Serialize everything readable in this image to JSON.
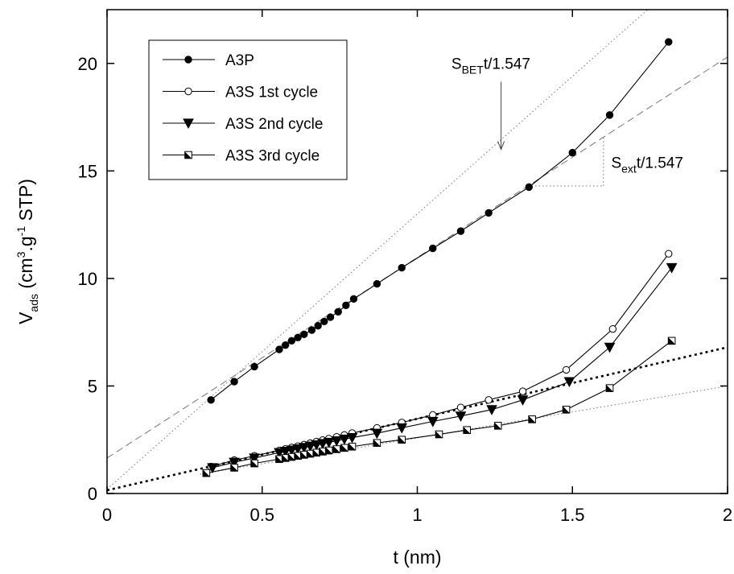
{
  "chart_data": {
    "type": "scatter",
    "xlabel": "t (nm)",
    "ylabel": {
      "main": "V",
      "sub": "ads",
      "unit_open": " (cm",
      "sup3": "3",
      "unit_mid": ".g",
      "supm1": "-1",
      "unit_close": " STP)"
    },
    "xlim": [
      0,
      2
    ],
    "ylim": [
      0,
      22.5
    ],
    "xticks": [
      {
        "value": 0,
        "label": "0"
      },
      {
        "value": 0.5,
        "label": "0.5"
      },
      {
        "value": 1,
        "label": "1"
      },
      {
        "value": 1.5,
        "label": "1.5"
      },
      {
        "value": 2,
        "label": "2"
      }
    ],
    "yticks": [
      {
        "value": 0,
        "label": "0"
      },
      {
        "value": 5,
        "label": "5"
      },
      {
        "value": 10,
        "label": "10"
      },
      {
        "value": 15,
        "label": "15"
      },
      {
        "value": 20,
        "label": "20"
      }
    ],
    "grid": false,
    "legend_position": "top-left",
    "series": [
      {
        "name": "A3P",
        "marker": "filled-circle",
        "x": [
          0.335,
          0.41,
          0.475,
          0.555,
          0.575,
          0.595,
          0.615,
          0.635,
          0.66,
          0.68,
          0.7,
          0.72,
          0.745,
          0.77,
          0.795,
          0.87,
          0.95,
          1.05,
          1.14,
          1.23,
          1.36,
          1.5,
          1.62,
          1.81
        ],
        "y": [
          4.35,
          5.2,
          5.9,
          6.7,
          6.9,
          7.1,
          7.25,
          7.4,
          7.6,
          7.8,
          8.0,
          8.2,
          8.45,
          8.75,
          9.05,
          9.75,
          10.5,
          11.4,
          12.2,
          13.05,
          14.25,
          15.85,
          17.6,
          21.0
        ]
      },
      {
        "name": "A3S  1st cycle",
        "marker": "open-circle",
        "x": [
          0.335,
          0.41,
          0.475,
          0.555,
          0.575,
          0.595,
          0.615,
          0.635,
          0.655,
          0.675,
          0.695,
          0.715,
          0.74,
          0.765,
          0.79,
          0.87,
          0.95,
          1.05,
          1.14,
          1.23,
          1.34,
          1.48,
          1.63,
          1.81
        ],
        "y": [
          1.25,
          1.55,
          1.75,
          2.0,
          2.07,
          2.14,
          2.2,
          2.27,
          2.34,
          2.41,
          2.48,
          2.55,
          2.63,
          2.72,
          2.81,
          3.05,
          3.3,
          3.65,
          4.0,
          4.35,
          4.75,
          5.75,
          7.65,
          11.15
        ]
      },
      {
        "name": "A3S  2nd cycle",
        "marker": "filled-triangle-down",
        "x": [
          0.34,
          0.41,
          0.475,
          0.555,
          0.575,
          0.595,
          0.615,
          0.635,
          0.655,
          0.675,
          0.695,
          0.715,
          0.74,
          0.765,
          0.79,
          0.87,
          0.95,
          1.05,
          1.14,
          1.24,
          1.34,
          1.49,
          1.62,
          1.82
        ],
        "y": [
          1.2,
          1.45,
          1.65,
          1.9,
          1.96,
          2.02,
          2.08,
          2.14,
          2.2,
          2.26,
          2.32,
          2.38,
          2.45,
          2.53,
          2.6,
          2.8,
          3.05,
          3.35,
          3.6,
          3.9,
          4.35,
          5.2,
          6.8,
          10.5
        ]
      },
      {
        "name": "A3S  3rd cycle",
        "marker": "half-filled-square",
        "x": [
          0.32,
          0.41,
          0.475,
          0.555,
          0.575,
          0.595,
          0.615,
          0.635,
          0.655,
          0.675,
          0.695,
          0.715,
          0.74,
          0.765,
          0.79,
          0.87,
          0.95,
          1.07,
          1.16,
          1.26,
          1.37,
          1.48,
          1.62,
          1.82
        ],
        "y": [
          0.95,
          1.2,
          1.4,
          1.6,
          1.65,
          1.7,
          1.75,
          1.8,
          1.85,
          1.9,
          1.95,
          2.0,
          2.06,
          2.12,
          2.18,
          2.35,
          2.5,
          2.75,
          2.95,
          3.15,
          3.45,
          3.9,
          4.9,
          7.1
        ]
      }
    ],
    "reference_lines": [
      {
        "id": "sbet-line",
        "style": "dotted",
        "x1": 0,
        "y1": 0.2,
        "x2": 2,
        "y2": 25.8
      },
      {
        "id": "sext-line",
        "style": "dashed",
        "x1": 0,
        "y1": 1.65,
        "x2": 2,
        "y2": 20.3
      },
      {
        "id": "a3s-fit-thick",
        "style": "thick-dotted",
        "x1": 0,
        "y1": 0.15,
        "x2": 2,
        "y2": 6.8
      },
      {
        "id": "a3s-fit-thin",
        "style": "dotted",
        "x1": 0.3,
        "y1": 0.9,
        "x2": 2,
        "y2": 5.0
      },
      {
        "id": "slope-triangle-horizontal",
        "style": "dotted",
        "x1": 1.38,
        "y1": 14.3,
        "x2": 1.6,
        "y2": 14.3
      },
      {
        "id": "slope-triangle-vertical",
        "style": "dotted",
        "x1": 1.6,
        "y1": 14.3,
        "x2": 1.6,
        "y2": 16.55
      }
    ],
    "annotations": [
      {
        "id": "sbet",
        "main": "S",
        "sub": "BET",
        "rest": "t/1.547",
        "x": 1.11,
        "y": 19.75,
        "arrow_from": [
          1.27,
          19.15
        ],
        "arrow_to": [
          1.27,
          16.0
        ]
      },
      {
        "id": "sext",
        "main": "S",
        "sub": "ext",
        "rest": "t/1.547",
        "x": 1.625,
        "y": 15.15
      }
    ]
  }
}
